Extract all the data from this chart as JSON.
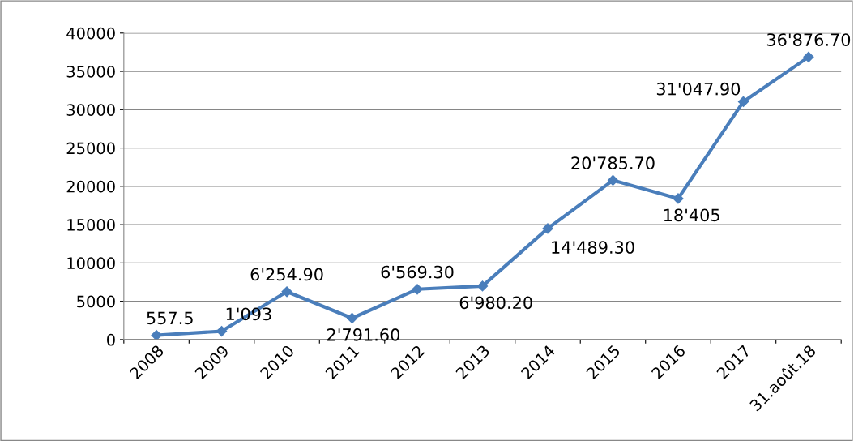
{
  "chart_data": {
    "type": "line",
    "categories": [
      "2008",
      "2009",
      "2010",
      "2011",
      "2012",
      "2013",
      "2014",
      "2015",
      "2016",
      "2017",
      "31.août.18"
    ],
    "series": [
      {
        "color": "#4a7ebb",
        "values": [
          557.5,
          1093,
          6254.9,
          2791.6,
          6569.3,
          6980.2,
          14489.3,
          20785.7,
          18405,
          31047.9,
          36876.7
        ],
        "value_labels": [
          "557.5",
          "1'093",
          "6'254.90",
          "2'791.60",
          "6'569.30",
          "6'980.20",
          "14'489.30",
          "20'785.70",
          "18'405",
          "31'047.90",
          "36'876.70"
        ]
      }
    ],
    "ylim": [
      0,
      40000
    ],
    "yticks": [
      0,
      5000,
      10000,
      15000,
      20000,
      25000,
      30000,
      35000,
      40000
    ],
    "grid": "y",
    "marker": "diamond",
    "line_style": "solid",
    "legend": false
  }
}
